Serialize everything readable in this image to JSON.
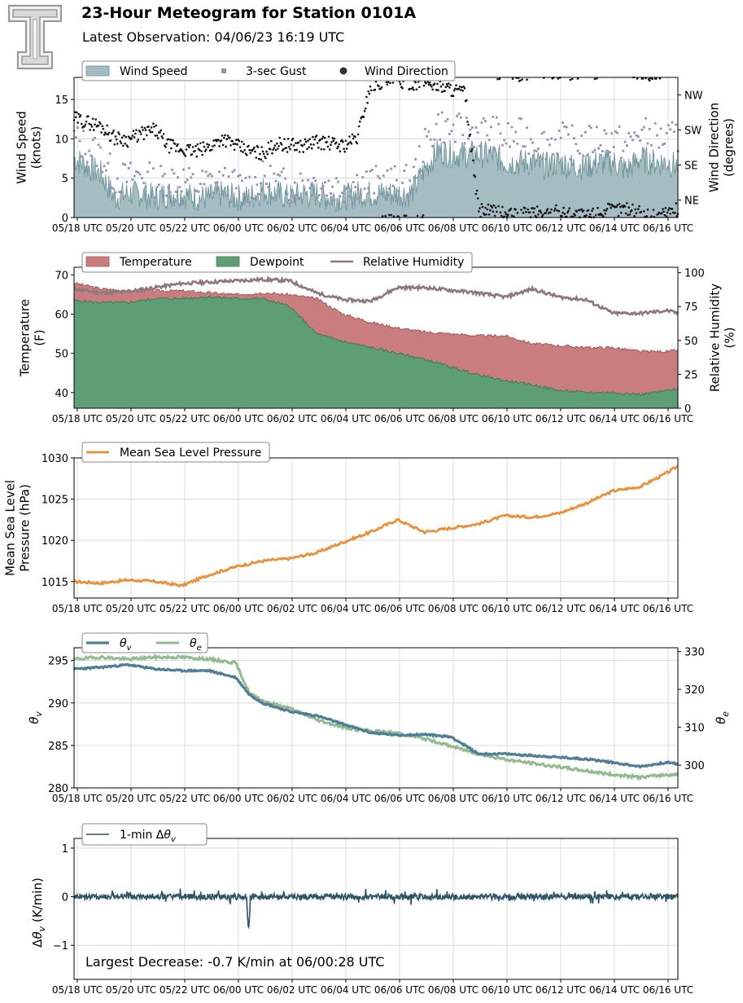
{
  "header": {
    "title": "23-Hour Meteogram for Station 0101A",
    "subtitle": "Latest Observation: 04/06/23 16:19 UTC"
  },
  "colors": {
    "wind_fill": "#a4bcc2",
    "wind_line": "#6f969c",
    "gust": "#9a90ad",
    "direction": "#111111",
    "temp": "#c97d7f",
    "dew": "#5e9e76",
    "rh": "#8f7879",
    "pressure": "#e8913a",
    "theta_v": "#4f7f96",
    "theta_e": "#93bb90",
    "delta": "#2b5569"
  },
  "chart_data": [
    {
      "type": "area",
      "id": "wind",
      "xticks": [
        "05/18 UTC",
        "05/20 UTC",
        "05/22 UTC",
        "06/00 UTC",
        "06/02 UTC",
        "06/04 UTC",
        "06/06 UTC",
        "06/08 UTC",
        "06/10 UTC",
        "06/12 UTC",
        "06/14 UTC",
        "06/16 UTC"
      ],
      "xlim": [
        0,
        22.4
      ],
      "ylabel": "Wind Speed\n(knots)",
      "ylim": [
        0,
        17.8
      ],
      "yticks": [
        0,
        5,
        10,
        15
      ],
      "y2label": "Wind Direction\n(degrees)",
      "y2lim": [
        0,
        360
      ],
      "y2ticks": [
        {
          "v": 45,
          "label": "NE"
        },
        {
          "v": 135,
          "label": "SE"
        },
        {
          "v": 225,
          "label": "SW"
        },
        {
          "v": 315,
          "label": "NW"
        }
      ],
      "grid": true,
      "legend_position": "top-left",
      "series": [
        {
          "name": "Wind Speed",
          "kind": "area",
          "x": [
            0,
            0.5,
            1,
            1.5,
            2,
            2.5,
            3,
            3.5,
            4,
            4.5,
            5,
            5.5,
            6,
            6.5,
            7,
            7.5,
            8,
            8.5,
            9,
            9.5,
            10,
            10.5,
            11,
            11.5,
            12,
            12.5,
            13,
            13.5,
            14,
            14.5,
            15,
            15.5,
            16,
            16.5,
            17,
            17.5,
            18,
            18.5,
            19,
            19.5,
            20,
            20.5,
            21,
            21.5,
            22,
            22.4
          ],
          "values": [
            7.5,
            6.5,
            5.5,
            2.5,
            3,
            3,
            2.5,
            3,
            3,
            2.5,
            2.5,
            3,
            2.5,
            2.5,
            3.5,
            3,
            2.5,
            3,
            3,
            2.5,
            2.5,
            3,
            3,
            3,
            3,
            3,
            6,
            8.5,
            8,
            8,
            8,
            8,
            7,
            7,
            7,
            6.5,
            7,
            6.5,
            6.5,
            7,
            7,
            6,
            7.5,
            7,
            7,
            6.5
          ]
        },
        {
          "name": "3-sec Gust",
          "kind": "points",
          "x": [
            0,
            0.5,
            1,
            1.5,
            2,
            2.5,
            3,
            3.5,
            4,
            4.5,
            5,
            5.5,
            6,
            6.5,
            7,
            7.5,
            8,
            8.5,
            9,
            9.5,
            10,
            10.5,
            11,
            11.5,
            12,
            12.5,
            13,
            13.5,
            14,
            14.5,
            15,
            15.5,
            16,
            16.5,
            17,
            17.5,
            18,
            18.5,
            19,
            19.5,
            20,
            20.5,
            21,
            21.5,
            22,
            22.4
          ],
          "values": [
            10,
            9,
            8,
            5,
            5,
            5.5,
            4.5,
            5,
            5,
            4,
            4.5,
            4.5,
            4,
            4,
            5,
            4.5,
            4,
            4.5,
            4.5,
            4,
            4,
            4.5,
            4.5,
            4.5,
            4.5,
            4.5,
            9,
            12,
            11,
            11,
            11,
            11,
            10,
            10.5,
            10,
            9.5,
            10,
            9.5,
            9.5,
            10,
            10,
            9,
            11,
            10,
            10,
            10
          ]
        },
        {
          "name": "Wind Direction",
          "kind": "points",
          "x": [
            0,
            0.5,
            1,
            1.5,
            2,
            2.5,
            3,
            3.5,
            4,
            4.5,
            5,
            5.5,
            6,
            6.5,
            7,
            7.5,
            8,
            8.5,
            9,
            9.5,
            10,
            10.5,
            11,
            11.5,
            12,
            12.5,
            13,
            13.5,
            14,
            14.5,
            15,
            15.5,
            16,
            16.5,
            17,
            17.5,
            18,
            18.5,
            19,
            19.5,
            20,
            20.5,
            21,
            21.5,
            22,
            22.4
          ],
          "values": [
            255,
            245,
            235,
            205,
            200,
            215,
            225,
            185,
            175,
            170,
            180,
            205,
            185,
            170,
            165,
            190,
            185,
            185,
            195,
            190,
            185,
            205,
            340,
            350,
            350,
            345,
            350,
            340,
            330,
            320,
            20,
            15,
            10,
            5,
            15,
            10,
            15,
            10,
            5,
            15,
            20,
            25,
            10,
            5,
            15,
            20
          ]
        }
      ]
    },
    {
      "type": "area",
      "id": "thermo",
      "xticks": [
        "05/18 UTC",
        "05/20 UTC",
        "05/22 UTC",
        "06/00 UTC",
        "06/02 UTC",
        "06/04 UTC",
        "06/06 UTC",
        "06/08 UTC",
        "06/10 UTC",
        "06/12 UTC",
        "06/14 UTC",
        "06/16 UTC"
      ],
      "xlim": [
        0,
        22.4
      ],
      "ylabel": "Temperature\n(F)",
      "ylim": [
        36,
        72
      ],
      "yticks": [
        40,
        50,
        60,
        70
      ],
      "y2label": "Relative Humidity\n(%)",
      "y2lim": [
        0,
        104
      ],
      "y2ticks": [
        0,
        25,
        50,
        75,
        100
      ],
      "grid": false,
      "legend_position": "top-left",
      "series": [
        {
          "name": "Temperature",
          "kind": "area",
          "x": [
            0,
            1,
            2,
            3,
            4,
            5,
            6,
            7,
            8,
            9,
            10,
            11,
            12,
            13,
            14,
            15,
            16,
            17,
            18,
            19,
            20,
            21,
            22,
            22.4
          ],
          "values": [
            68,
            66.5,
            66,
            66,
            66,
            65.5,
            65,
            65.5,
            65,
            64,
            60,
            58,
            56.5,
            55.5,
            55,
            54.5,
            54.5,
            52.5,
            52,
            51.5,
            51.5,
            50.5,
            50.5,
            50.8
          ]
        },
        {
          "name": "Dewpoint",
          "kind": "area",
          "x": [
            0,
            1,
            2,
            3,
            4,
            5,
            6,
            7,
            8,
            9,
            10,
            11,
            12,
            13,
            14,
            15,
            16,
            17,
            18,
            19,
            20,
            21,
            22,
            22.4
          ],
          "values": [
            63.5,
            63,
            63,
            64,
            64,
            64.5,
            64,
            64,
            62,
            55,
            53,
            51.5,
            50,
            48.5,
            46.5,
            44.5,
            43,
            42,
            40.5,
            40,
            40,
            39.5,
            40.5,
            41
          ]
        },
        {
          "name": "Relative Humidity",
          "kind": "line",
          "x": [
            0,
            1,
            2,
            3,
            4,
            5,
            6,
            7,
            8,
            9,
            10,
            11,
            12,
            13,
            14,
            15,
            16,
            17,
            18,
            19,
            20,
            21,
            22,
            22.4
          ],
          "values": [
            88,
            85,
            86,
            89,
            92,
            93,
            94,
            95,
            94,
            85,
            80,
            79,
            89,
            89,
            87,
            85,
            82,
            88,
            82,
            80,
            70,
            70,
            72,
            70
          ]
        }
      ]
    },
    {
      "type": "line",
      "id": "pressure",
      "xticks": [
        "05/18 UTC",
        "05/20 UTC",
        "05/22 UTC",
        "06/00 UTC",
        "06/02 UTC",
        "06/04 UTC",
        "06/06 UTC",
        "06/08 UTC",
        "06/10 UTC",
        "06/12 UTC",
        "06/14 UTC",
        "06/16 UTC"
      ],
      "xlim": [
        0,
        22.4
      ],
      "ylabel": "Mean Sea Level\nPressure (hPa)",
      "ylim": [
        1013,
        1030
      ],
      "yticks": [
        1015,
        1020,
        1025,
        1030
      ],
      "grid": true,
      "legend_position": "top-left",
      "series": [
        {
          "name": "Mean Sea Level Pressure",
          "x": [
            0,
            1,
            2,
            3,
            4,
            5,
            6,
            7,
            8,
            9,
            10,
            11,
            12,
            13,
            14,
            15,
            16,
            17,
            18,
            19,
            20,
            21,
            22,
            22.4
          ],
          "values": [
            1015,
            1014.8,
            1015.2,
            1015,
            1014.5,
            1015.8,
            1016.8,
            1017.5,
            1017.8,
            1018.5,
            1019.8,
            1021,
            1022.5,
            1021,
            1021.5,
            1022,
            1023,
            1022.8,
            1023.3,
            1024.5,
            1026,
            1026.5,
            1028.2,
            1029
          ]
        }
      ]
    },
    {
      "type": "line",
      "id": "theta",
      "xticks": [
        "05/18 UTC",
        "05/20 UTC",
        "05/22 UTC",
        "06/00 UTC",
        "06/02 UTC",
        "06/04 UTC",
        "06/06 UTC",
        "06/08 UTC",
        "06/10 UTC",
        "06/12 UTC",
        "06/14 UTC",
        "06/16 UTC"
      ],
      "xlim": [
        0,
        22.4
      ],
      "ylabel": "θv (K)",
      "ylim": [
        280,
        296.5
      ],
      "yticks": [
        280,
        285,
        290,
        295
      ],
      "y2label": "θe (K)",
      "y2lim": [
        294,
        331
      ],
      "y2ticks": [
        300,
        310,
        320,
        330
      ],
      "grid": true,
      "legend_position": "top-left",
      "series": [
        {
          "name": "θv",
          "axis": "left",
          "x": [
            0,
            1,
            2,
            3,
            4,
            5,
            6,
            6.5,
            7,
            8,
            9,
            10,
            11,
            12,
            13,
            14,
            15,
            16,
            17,
            18,
            19,
            20,
            21,
            22,
            22.4
          ],
          "values": [
            294,
            294.2,
            294.5,
            294,
            293.8,
            293.8,
            293,
            291,
            290,
            289,
            288.5,
            287.5,
            286.5,
            286.2,
            286.3,
            286,
            284,
            284,
            283.8,
            283.6,
            283.4,
            283,
            282.5,
            283,
            282.8
          ]
        },
        {
          "name": "θe",
          "axis": "right",
          "x": [
            0,
            1,
            2,
            3,
            4,
            5,
            6,
            6.5,
            7,
            8,
            9,
            10,
            11,
            12,
            13,
            14,
            15,
            16,
            17,
            18,
            19,
            20,
            21,
            22,
            22.4
          ],
          "values": [
            328,
            328.5,
            328,
            328.5,
            328.5,
            328,
            327,
            319,
            317,
            315,
            312,
            310,
            309,
            308.5,
            307,
            305,
            303,
            301.5,
            300.5,
            299.5,
            298.5,
            297.5,
            296.8,
            297.5,
            297.5
          ]
        }
      ]
    },
    {
      "type": "line",
      "id": "delta",
      "xticks": [
        "05/18 UTC",
        "05/20 UTC",
        "05/22 UTC",
        "06/00 UTC",
        "06/02 UTC",
        "06/04 UTC",
        "06/06 UTC",
        "06/08 UTC",
        "06/10 UTC",
        "06/12 UTC",
        "06/14 UTC",
        "06/16 UTC"
      ],
      "xlim": [
        0,
        22.4
      ],
      "ylabel": "Δθv (K/min)",
      "ylim": [
        -1.7,
        1.2
      ],
      "yticks": [
        -1,
        0,
        1
      ],
      "grid": true,
      "legend_position": "top-left",
      "annotation": "Largest Decrease: -0.7 K/min at 06/00:28 UTC",
      "series": [
        {
          "name": "1-min Δθv",
          "x": [
            0,
            1,
            2,
            3,
            4,
            5,
            6,
            6.4,
            6.47,
            6.55,
            7,
            8,
            9,
            10,
            11,
            12,
            13,
            14,
            15,
            16,
            17,
            18,
            19,
            20,
            21,
            22,
            22.4
          ],
          "values": [
            0.02,
            -0.03,
            0.04,
            -0.02,
            0.03,
            -0.04,
            0.01,
            -0.05,
            -0.7,
            -0.1,
            0.02,
            -0.03,
            0.03,
            -0.02,
            0.02,
            0.1,
            -0.03,
            0.03,
            -0.05,
            0.02,
            -0.02,
            0.01,
            -0.02,
            0.02,
            0.03,
            0.05,
            0
          ]
        }
      ]
    }
  ]
}
